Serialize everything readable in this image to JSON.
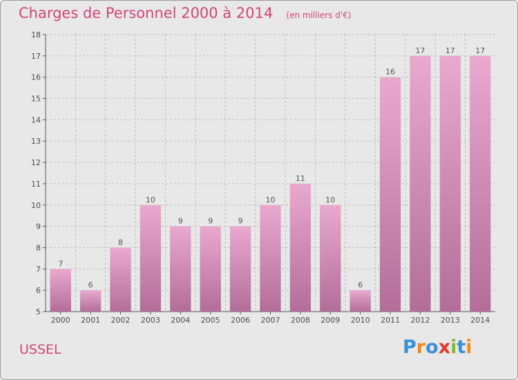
{
  "chart_data": {
    "type": "bar",
    "title": "Charges de Personnel 2000 à 2014",
    "subtitle": "(en milliers d'€)",
    "xlabel": "",
    "ylabel": "",
    "categories": [
      "2000",
      "2001",
      "2002",
      "2003",
      "2004",
      "2005",
      "2006",
      "2007",
      "2008",
      "2009",
      "2010",
      "2011",
      "2012",
      "2013",
      "2014"
    ],
    "values": [
      7,
      6,
      8,
      10,
      9,
      9,
      9,
      10,
      11,
      10,
      6,
      16,
      17,
      17,
      17
    ],
    "ylim": [
      5,
      18
    ],
    "yticks": [
      5,
      6,
      7,
      8,
      9,
      10,
      11,
      12,
      13,
      14,
      15,
      16,
      17,
      18
    ],
    "grid": true,
    "colors": {
      "bar_top": "#e9a9cf",
      "bar_bottom": "#b26e98",
      "title": "#d0457a",
      "grid": "#bcbcbc"
    }
  },
  "commune": "USSEL",
  "logo": {
    "text": "Proxiti",
    "letters": [
      "P",
      "r",
      "o",
      "x",
      "i",
      "t",
      "i"
    ],
    "colors": [
      "#3a8fd6",
      "#f28a1b",
      "#3a8fd6",
      "#e5362c",
      "#7cbd2e",
      "#3a8fd6",
      "#f28a1b"
    ]
  }
}
